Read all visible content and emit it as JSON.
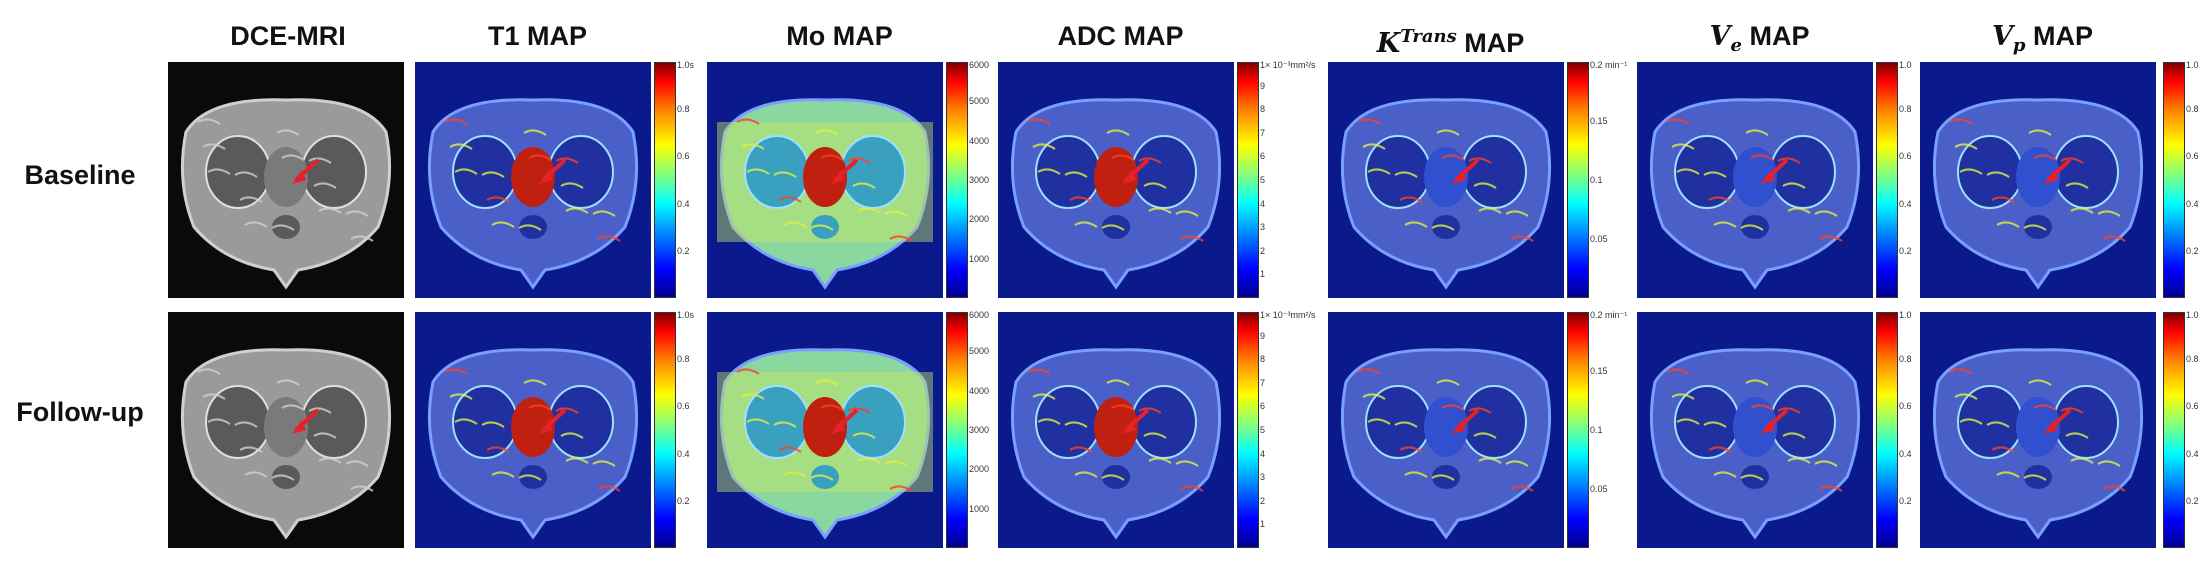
{
  "columns": [
    {
      "key": "dce",
      "title": "DCE-MRI"
    },
    {
      "key": "t1",
      "title": "T1 MAP"
    },
    {
      "key": "mo",
      "title": "Mo MAP"
    },
    {
      "key": "adc",
      "title": "ADC MAP"
    },
    {
      "key": "ktrans",
      "symbol": "K",
      "sup": "Trans",
      "suffix": " MAP"
    },
    {
      "key": "ve",
      "symbol": "V",
      "sub": "e",
      "suffix": " MAP"
    },
    {
      "key": "vp",
      "symbol": "V",
      "sub": "p",
      "suffix": " MAP"
    }
  ],
  "rows": [
    {
      "label": "Baseline"
    },
    {
      "label": "Follow-up"
    }
  ],
  "colorbars": {
    "t1": {
      "unit_label": "1.0s",
      "ticks": [
        "0.8",
        "0.6",
        "0.4",
        "0.2"
      ]
    },
    "mo": {
      "unit_label": "6000",
      "ticks": [
        "5000",
        "4000",
        "3000",
        "2000",
        "1000"
      ]
    },
    "adc": {
      "unit_label": "1× 10⁻³mm²/s",
      "ticks": [
        "9",
        "8",
        "7",
        "6",
        "5",
        "4",
        "3",
        "2",
        "1"
      ]
    },
    "ktrans": {
      "unit_label": "0.2 min⁻¹",
      "ticks": [
        "0.15",
        "0.1",
        "0.05"
      ]
    },
    "ve": {
      "unit_label": "1.0",
      "ticks": [
        "0.8",
        "0.6",
        "0.4",
        "0.2"
      ]
    },
    "vp": {
      "unit_label": "1.0",
      "ticks": [
        "0.8",
        "0.6",
        "0.4",
        "0.2"
      ]
    }
  },
  "colors": {
    "map_background": "#0a1a8c",
    "body_tissue": "#4a5fc8",
    "annotation_arrow": "#e8202a"
  }
}
